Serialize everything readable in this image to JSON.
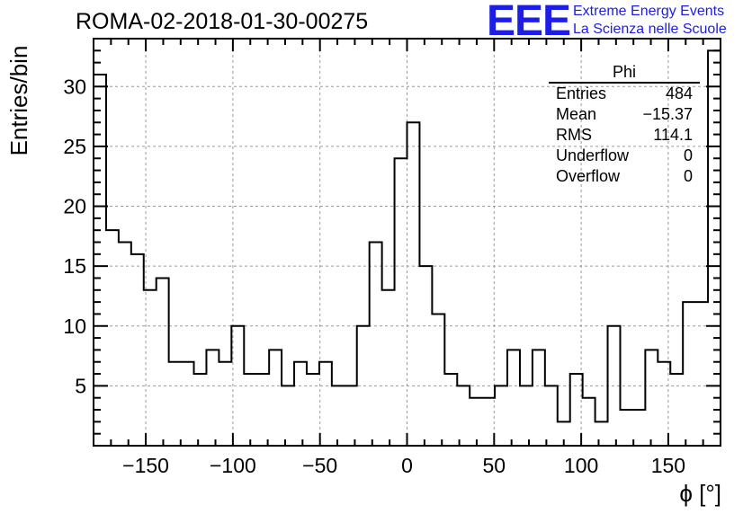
{
  "header": {
    "run_title": "ROMA-02-2018-01-30-00275",
    "logo_text": "EEE",
    "logo_line1": "Extreme Energy Events",
    "logo_line2": "La Scienza nelle Scuole"
  },
  "stats": {
    "title": "Phi",
    "rows": [
      {
        "label": "Entries",
        "value": "484"
      },
      {
        "label": "Mean",
        "value": "−15.37"
      },
      {
        "label": "RMS",
        "value": "114.1"
      },
      {
        "label": "Underflow",
        "value": "0"
      },
      {
        "label": "Overflow",
        "value": "0"
      }
    ]
  },
  "colors": {
    "logo": "#1d1de6",
    "line": "#000000",
    "grid": "#9a9a9a"
  },
  "chart_data": {
    "type": "histogram",
    "xlabel": "ϕ [°]",
    "ylabel": "Entries/bin",
    "xlim": [
      -180,
      180
    ],
    "ylim": [
      0,
      34
    ],
    "bin_width": 7.2,
    "xticks": [
      -150,
      -100,
      -50,
      0,
      50,
      100,
      150
    ],
    "xtick_labels": [
      "−150",
      "−100",
      "−50",
      "0",
      "50",
      "100",
      "150"
    ],
    "yticks": [
      5,
      10,
      15,
      20,
      25,
      30
    ],
    "ytick_labels": [
      "5",
      "10",
      "15",
      "20",
      "25",
      "30"
    ],
    "grid": true,
    "bin_values": [
      31,
      18,
      17,
      16,
      13,
      14,
      7,
      7,
      6,
      8,
      7,
      10,
      6,
      6,
      8,
      5,
      7,
      6,
      7,
      5,
      5,
      10,
      17,
      13,
      24,
      27,
      15,
      11,
      6,
      5,
      4,
      4,
      5,
      8,
      5,
      8,
      5,
      2,
      6,
      4,
      2,
      10,
      3,
      3,
      8,
      7,
      6,
      12,
      12,
      33
    ]
  }
}
